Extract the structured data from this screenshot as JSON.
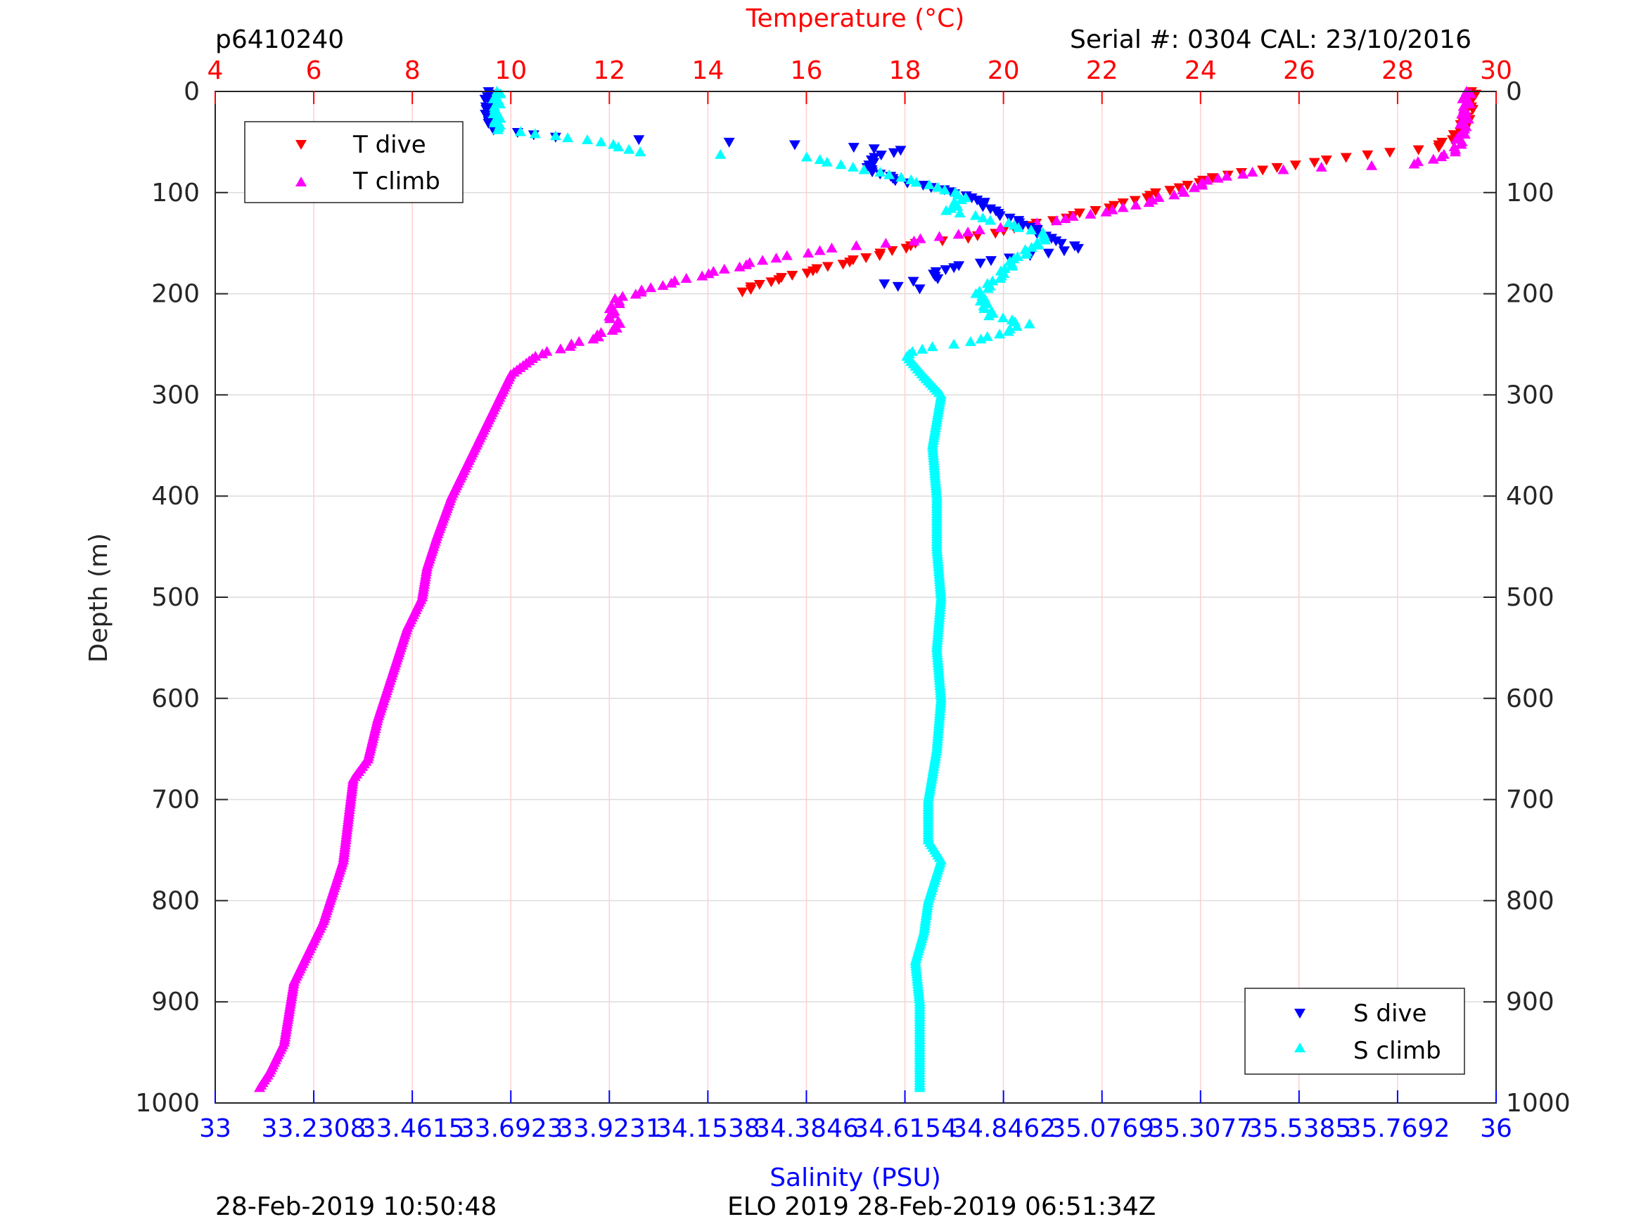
{
  "header": {
    "profile_id": "p6410240",
    "serial_cal": "Serial #: 0304  CAL: 23/10/2016"
  },
  "footer": {
    "left_timestamp": "28-Feb-2019 10:50:48",
    "right_label": "ELO 2019 28-Feb-2019 06:51:34Z"
  },
  "colors": {
    "temperature_axis": "#ff0000",
    "salinity_axis": "#0000ff",
    "t_dive": "#ff0000",
    "t_climb": "#ff00ff",
    "s_dive": "#0000ff",
    "s_climb": "#00ffff"
  },
  "chart_data": {
    "type": "scatter",
    "title": "",
    "ylabel": "Depth (m)",
    "ylim": [
      1000,
      0
    ],
    "y_reversed": true,
    "y_ticks": [
      "0",
      "100",
      "200",
      "300",
      "400",
      "500",
      "600",
      "700",
      "800",
      "900",
      "1000"
    ],
    "top_axis": {
      "label": "Temperature (°C)",
      "range": [
        4,
        30
      ],
      "ticks": [
        "4",
        "6",
        "8",
        "10",
        "12",
        "14",
        "16",
        "18",
        "20",
        "22",
        "24",
        "26",
        "28",
        "30"
      ]
    },
    "bottom_axis": {
      "label": "Salinity (PSU)",
      "range": [
        33,
        36
      ],
      "ticks": [
        "33",
        "33.2308",
        "33.4615",
        "33.6923",
        "33.9231",
        "34.1538",
        "34.3846",
        "34.6154",
        "34.8462",
        "35.0769",
        "35.3077",
        "35.5385",
        "35.7692",
        "36"
      ]
    },
    "grid": true,
    "legends": [
      {
        "position": "top-left",
        "entries": [
          "T dive",
          "T climb"
        ]
      },
      {
        "position": "bottom-right",
        "entries": [
          "S dive",
          "S climb"
        ]
      }
    ],
    "series": [
      {
        "name": "T dive",
        "axis": "temperature",
        "marker": "triangle-down",
        "points": [
          [
            29.5,
            0
          ],
          [
            29.5,
            10
          ],
          [
            29.4,
            25
          ],
          [
            29.3,
            40
          ],
          [
            28.8,
            55
          ],
          [
            27.0,
            65
          ],
          [
            25.5,
            75
          ],
          [
            24.3,
            85
          ],
          [
            23.5,
            95
          ],
          [
            22.5,
            110
          ],
          [
            21.2,
            125
          ],
          [
            20.3,
            135
          ],
          [
            19.2,
            145
          ],
          [
            18.3,
            150
          ],
          [
            17.4,
            162
          ],
          [
            16.3,
            175
          ],
          [
            15.2,
            188
          ],
          [
            14.7,
            198
          ]
        ]
      },
      {
        "name": "T climb",
        "axis": "temperature",
        "marker": "triangle-up",
        "points": [
          [
            29.4,
            0
          ],
          [
            29.4,
            20
          ],
          [
            29.3,
            40
          ],
          [
            29.2,
            60
          ],
          [
            28.3,
            72
          ],
          [
            26.5,
            75
          ],
          [
            25.0,
            80
          ],
          [
            24.2,
            88
          ],
          [
            23.6,
            100
          ],
          [
            22.5,
            115
          ],
          [
            21.0,
            128
          ],
          [
            19.6,
            137
          ],
          [
            18.1,
            148
          ],
          [
            16.6,
            155
          ],
          [
            15.3,
            165
          ],
          [
            14.2,
            178
          ],
          [
            13.0,
            192
          ],
          [
            12.2,
            205
          ],
          [
            12.0,
            220
          ],
          [
            12.2,
            232
          ],
          [
            11.6,
            245
          ],
          [
            10.5,
            262
          ],
          [
            10.0,
            280
          ],
          [
            9.8,
            300
          ],
          [
            9.6,
            320
          ],
          [
            9.3,
            350
          ],
          [
            9.0,
            380
          ],
          [
            8.8,
            400
          ],
          [
            8.5,
            440
          ],
          [
            8.3,
            470
          ],
          [
            8.2,
            500
          ],
          [
            7.9,
            530
          ],
          [
            7.7,
            560
          ],
          [
            7.5,
            590
          ],
          [
            7.3,
            620
          ],
          [
            7.1,
            660
          ],
          [
            6.8,
            680
          ],
          [
            6.7,
            720
          ],
          [
            6.6,
            760
          ],
          [
            6.4,
            790
          ],
          [
            6.2,
            820
          ],
          [
            5.9,
            850
          ],
          [
            5.6,
            880
          ],
          [
            5.5,
            910
          ],
          [
            5.4,
            940
          ],
          [
            5.1,
            970
          ],
          [
            4.9,
            985
          ]
        ]
      },
      {
        "name": "S dive",
        "axis": "salinity",
        "marker": "triangle-down",
        "points": [
          [
            33.64,
            0
          ],
          [
            33.64,
            20
          ],
          [
            33.65,
            38
          ],
          [
            33.8,
            45
          ],
          [
            34.2,
            50
          ],
          [
            34.5,
            55
          ],
          [
            34.6,
            58
          ],
          [
            34.55,
            65
          ],
          [
            34.52,
            75
          ],
          [
            34.6,
            88
          ],
          [
            34.7,
            97
          ],
          [
            34.78,
            105
          ],
          [
            34.82,
            118
          ],
          [
            34.9,
            132
          ],
          [
            34.95,
            145
          ],
          [
            35.03,
            155
          ],
          [
            34.9,
            162
          ],
          [
            34.75,
            172
          ],
          [
            34.68,
            178
          ],
          [
            34.7,
            185
          ],
          [
            34.56,
            190
          ],
          [
            34.65,
            195
          ]
        ]
      },
      {
        "name": "S climb",
        "axis": "salinity",
        "marker": "triangle-up",
        "points": [
          [
            33.66,
            0
          ],
          [
            33.66,
            20
          ],
          [
            33.66,
            38
          ],
          [
            33.8,
            44
          ],
          [
            33.9,
            50
          ],
          [
            34.0,
            60
          ],
          [
            34.38,
            65
          ],
          [
            34.5,
            75
          ],
          [
            34.6,
            85
          ],
          [
            34.7,
            95
          ],
          [
            34.75,
            105
          ],
          [
            34.72,
            118
          ],
          [
            34.85,
            130
          ],
          [
            34.95,
            142
          ],
          [
            34.92,
            152
          ],
          [
            34.87,
            168
          ],
          [
            34.83,
            185
          ],
          [
            34.79,
            200
          ],
          [
            34.8,
            210
          ],
          [
            34.82,
            222
          ],
          [
            34.9,
            230
          ],
          [
            34.8,
            245
          ],
          [
            34.65,
            255
          ],
          [
            34.62,
            262
          ],
          [
            34.66,
            282
          ],
          [
            34.7,
            300
          ],
          [
            34.68,
            350
          ],
          [
            34.69,
            400
          ],
          [
            34.69,
            450
          ],
          [
            34.7,
            500
          ],
          [
            34.69,
            550
          ],
          [
            34.7,
            600
          ],
          [
            34.69,
            650
          ],
          [
            34.67,
            700
          ],
          [
            34.67,
            740
          ],
          [
            34.7,
            760
          ],
          [
            34.67,
            800
          ],
          [
            34.66,
            830
          ],
          [
            34.64,
            860
          ],
          [
            34.65,
            900
          ],
          [
            34.65,
            950
          ],
          [
            34.65,
            985
          ]
        ]
      }
    ]
  }
}
